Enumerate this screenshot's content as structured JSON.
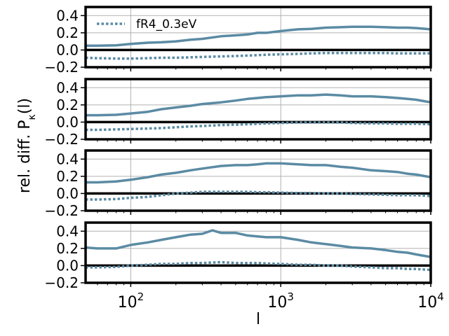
{
  "chart_data": {
    "type": "line",
    "ylabel": "rel. diff. P_κ(l)",
    "xlabel": "l",
    "xscale": "log",
    "xlim": [
      50,
      10000
    ],
    "ylim": [
      -0.2,
      0.5
    ],
    "x_ticks": [
      100,
      1000,
      10000
    ],
    "x_tick_labels": [
      {
        "base": "10",
        "exp": "2"
      },
      {
        "base": "10",
        "exp": "3"
      },
      {
        "base": "10",
        "exp": "4"
      }
    ],
    "y_ticks": [
      -0.2,
      0.0,
      0.2,
      0.4
    ],
    "y_tick_labels": [
      "−0.2",
      "0.0",
      "0.2",
      "0.4"
    ],
    "grid": true,
    "zero_line": true,
    "color": "#5b8ba4",
    "legend": {
      "placement": "top-left",
      "panel": 0
    },
    "panels": [
      {
        "series": [
          {
            "name": "fR4_0.3eV",
            "style": "dotted",
            "x": [
              50,
              60,
              80,
              100,
              130,
              160,
              200,
              250,
              300,
              400,
              500,
              600,
              700,
              800,
              1000,
              1300,
              1600,
              2000,
              2500,
              3000,
              4000,
              5000,
              6000,
              7000,
              8000,
              10000
            ],
            "y": [
              -0.09,
              -0.095,
              -0.1,
              -0.1,
              -0.095,
              -0.09,
              -0.09,
              -0.085,
              -0.08,
              -0.075,
              -0.07,
              -0.065,
              -0.06,
              -0.055,
              -0.05,
              -0.045,
              -0.04,
              -0.035,
              -0.035,
              -0.035,
              -0.035,
              -0.035,
              -0.04,
              -0.04,
              -0.04,
              -0.04
            ]
          },
          {
            "name": "",
            "style": "solid",
            "x": [
              50,
              60,
              80,
              100,
              130,
              160,
              200,
              250,
              300,
              400,
              500,
              600,
              700,
              800,
              1000,
              1300,
              1600,
              2000,
              2500,
              3000,
              4000,
              5000,
              6000,
              7000,
              8000,
              10000
            ],
            "y": [
              0.05,
              0.05,
              0.055,
              0.07,
              0.085,
              0.09,
              0.1,
              0.12,
              0.13,
              0.16,
              0.17,
              0.18,
              0.2,
              0.2,
              0.22,
              0.24,
              0.245,
              0.26,
              0.265,
              0.27,
              0.27,
              0.265,
              0.26,
              0.26,
              0.255,
              0.24
            ]
          }
        ]
      },
      {
        "series": [
          {
            "name": "",
            "style": "dotted",
            "x": [
              50,
              60,
              80,
              100,
              130,
              160,
              200,
              250,
              300,
              400,
              500,
              600,
              700,
              800,
              1000,
              1300,
              1600,
              2000,
              2500,
              3000,
              4000,
              5000,
              6000,
              7000,
              8000,
              10000
            ],
            "y": [
              -0.09,
              -0.09,
              -0.085,
              -0.08,
              -0.075,
              -0.07,
              -0.06,
              -0.05,
              -0.045,
              -0.035,
              -0.03,
              -0.025,
              -0.02,
              -0.015,
              -0.01,
              -0.005,
              -0.005,
              -0.005,
              -0.005,
              -0.01,
              -0.015,
              -0.015,
              -0.02,
              -0.02,
              -0.02,
              -0.025
            ]
          },
          {
            "name": "",
            "style": "solid",
            "x": [
              50,
              60,
              80,
              100,
              130,
              160,
              200,
              250,
              300,
              400,
              500,
              600,
              700,
              800,
              1000,
              1300,
              1600,
              2000,
              2500,
              3000,
              4000,
              5000,
              6000,
              7000,
              8000,
              10000
            ],
            "y": [
              0.08,
              0.08,
              0.085,
              0.1,
              0.12,
              0.15,
              0.17,
              0.19,
              0.21,
              0.23,
              0.25,
              0.27,
              0.28,
              0.29,
              0.3,
              0.31,
              0.31,
              0.32,
              0.31,
              0.3,
              0.3,
              0.29,
              0.28,
              0.27,
              0.26,
              0.23
            ]
          }
        ]
      },
      {
        "series": [
          {
            "name": "",
            "style": "dotted",
            "x": [
              50,
              60,
              80,
              100,
              130,
              160,
              200,
              250,
              300,
              400,
              500,
              600,
              700,
              800,
              1000,
              1300,
              1600,
              2000,
              2500,
              3000,
              4000,
              5000,
              6000,
              7000,
              8000,
              10000
            ],
            "y": [
              -0.07,
              -0.07,
              -0.065,
              -0.05,
              -0.04,
              -0.02,
              0.0,
              0.01,
              0.02,
              0.02,
              0.02,
              0.02,
              0.015,
              0.015,
              0.01,
              0.005,
              0.005,
              0.0,
              0.0,
              -0.005,
              -0.01,
              -0.015,
              -0.02,
              -0.02,
              -0.02,
              -0.03
            ]
          },
          {
            "name": "",
            "style": "solid",
            "x": [
              50,
              60,
              80,
              100,
              130,
              160,
              200,
              250,
              300,
              400,
              500,
              600,
              700,
              800,
              1000,
              1300,
              1600,
              2000,
              2500,
              3000,
              4000,
              5000,
              6000,
              7000,
              8000,
              10000
            ],
            "y": [
              0.13,
              0.13,
              0.14,
              0.16,
              0.19,
              0.22,
              0.24,
              0.27,
              0.29,
              0.32,
              0.33,
              0.33,
              0.34,
              0.35,
              0.35,
              0.34,
              0.33,
              0.33,
              0.31,
              0.3,
              0.27,
              0.26,
              0.25,
              0.23,
              0.22,
              0.19
            ]
          }
        ]
      },
      {
        "series": [
          {
            "name": "",
            "style": "dotted",
            "x": [
              50,
              60,
              80,
              100,
              130,
              160,
              200,
              250,
              300,
              400,
              500,
              600,
              700,
              800,
              1000,
              1300,
              1600,
              2000,
              2500,
              3000,
              4000,
              5000,
              6000,
              7000,
              8000,
              10000
            ],
            "y": [
              -0.02,
              -0.02,
              -0.015,
              0.0,
              0.01,
              0.02,
              0.02,
              0.03,
              0.03,
              0.04,
              0.03,
              0.03,
              0.03,
              0.025,
              0.02,
              0.01,
              0.01,
              0.0,
              0.0,
              -0.01,
              -0.02,
              -0.03,
              -0.03,
              -0.04,
              -0.04,
              -0.05
            ]
          },
          {
            "name": "",
            "style": "solid",
            "x": [
              50,
              60,
              80,
              100,
              130,
              160,
              200,
              250,
              300,
              350,
              400,
              500,
              600,
              700,
              800,
              1000,
              1300,
              1600,
              2000,
              2500,
              3000,
              4000,
              5000,
              6000,
              7000,
              8000,
              10000
            ],
            "y": [
              0.21,
              0.2,
              0.2,
              0.24,
              0.27,
              0.3,
              0.33,
              0.36,
              0.37,
              0.41,
              0.38,
              0.38,
              0.35,
              0.34,
              0.33,
              0.33,
              0.3,
              0.27,
              0.25,
              0.23,
              0.21,
              0.2,
              0.18,
              0.16,
              0.15,
              0.13,
              0.1
            ]
          }
        ]
      }
    ]
  }
}
